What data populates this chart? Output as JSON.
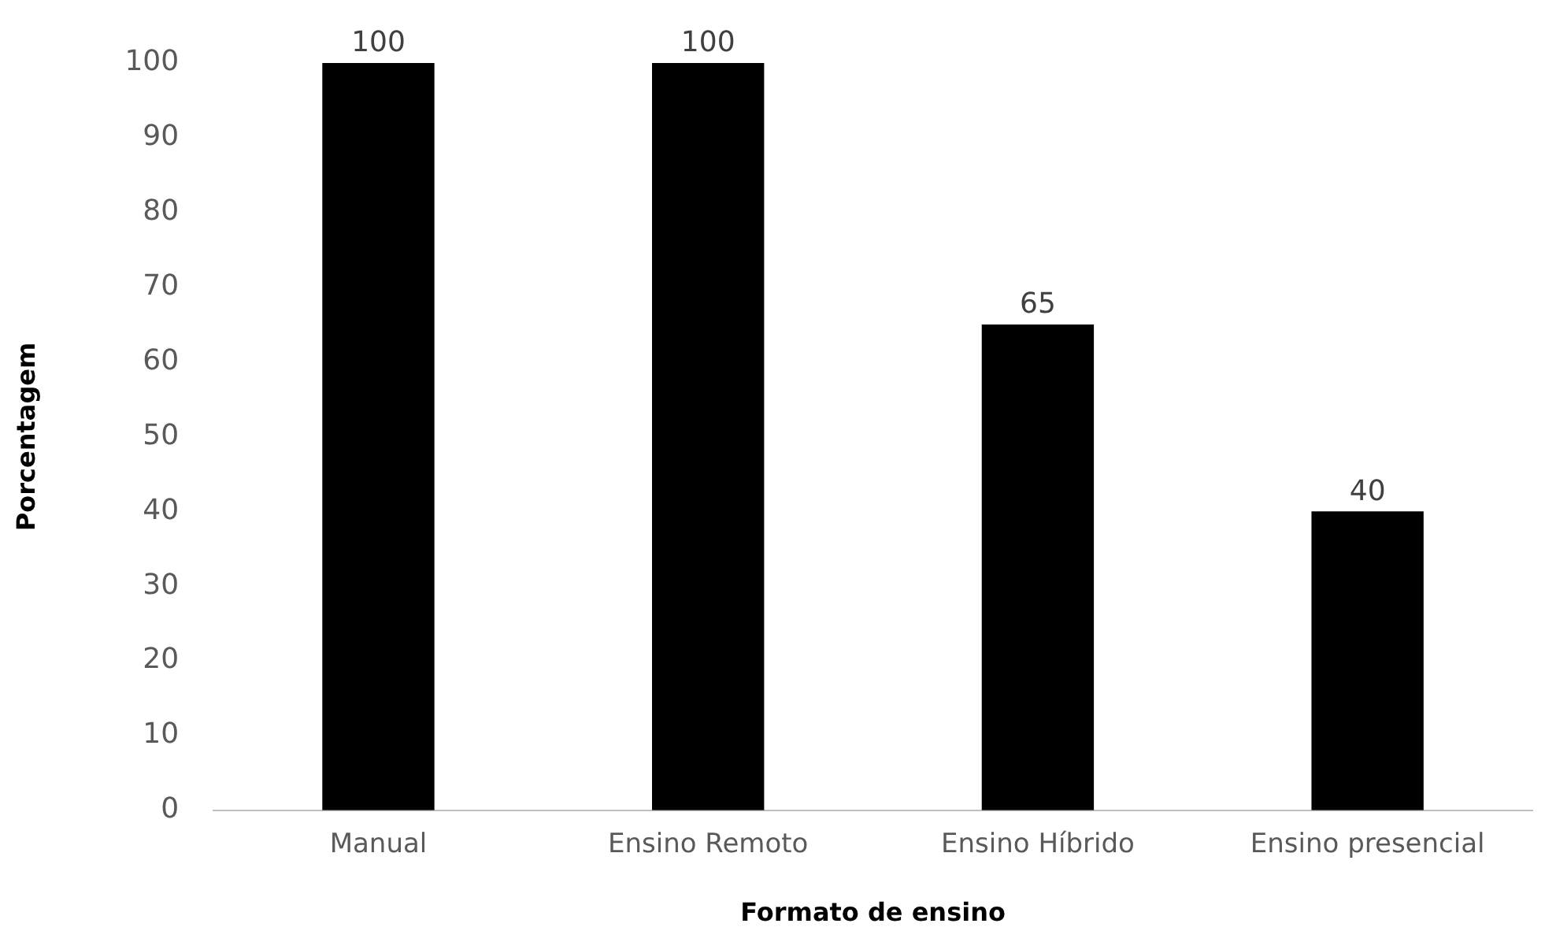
{
  "chart_data": {
    "type": "bar",
    "xlabel": "Formato de ensino",
    "ylabel": "Porcentagem",
    "categories": [
      "Manual",
      "Ensino Remoto",
      "Ensino Híbrido",
      "Ensino presencial"
    ],
    "values": [
      100,
      100,
      65,
      40
    ],
    "color": "#000000",
    "ylim": [
      0,
      100
    ],
    "yticks": [
      0,
      10,
      20,
      30,
      40,
      50,
      60,
      70,
      80,
      90,
      100
    ],
    "grid": false,
    "legend": false,
    "data_labels": true
  }
}
